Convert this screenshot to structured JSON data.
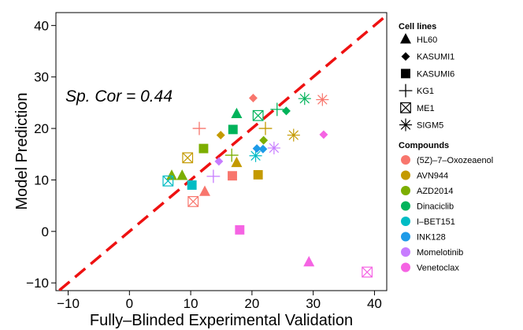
{
  "chart_data": {
    "type": "scatter",
    "xlabel": "Fully–Blinded Experimental Validation",
    "ylabel": "Model Prediction",
    "xlim": [
      -12,
      42
    ],
    "ylim": [
      -11.5,
      42.5
    ],
    "xticks": [
      -10,
      0,
      10,
      20,
      30,
      40
    ],
    "yticks": [
      -10,
      0,
      10,
      20,
      30,
      40
    ],
    "annotation": "Sp. Cor = 0.44",
    "reference_line": {
      "style": "dashed",
      "color": "#ee1111",
      "slope": 1,
      "intercept": 0
    },
    "legend_cell_lines": {
      "title": "Cell lines",
      "items": [
        {
          "label": "HL60",
          "shape": "triangle"
        },
        {
          "label": "KASUMI1",
          "shape": "diamond"
        },
        {
          "label": "KASUMI6",
          "shape": "square"
        },
        {
          "label": "KG1",
          "shape": "plus"
        },
        {
          "label": "ME1",
          "shape": "boxx"
        },
        {
          "label": "SIGM5",
          "shape": "star"
        }
      ]
    },
    "legend_compounds": {
      "title": "Compounds",
      "items": [
        {
          "label": "(5Z)–7–Oxozeaenol",
          "color": "#f8766d"
        },
        {
          "label": "AVN944",
          "color": "#c49a00"
        },
        {
          "label": "AZD2014",
          "color": "#7cae00"
        },
        {
          "label": "Dinaciclib",
          "color": "#00b35a"
        },
        {
          "label": "I–BET151",
          "color": "#00bcc4"
        },
        {
          "label": "INK128",
          "color": "#1e9be8"
        },
        {
          "label": "Momelotinib",
          "color": "#c77cff"
        },
        {
          "label": "Venetoclax",
          "color": "#f564e3"
        }
      ]
    },
    "points": [
      {
        "x": 20.2,
        "y": 25.9,
        "cell_line": "KASUMI1",
        "compound": "(5Z)–7–Oxozeaenol"
      },
      {
        "x": 31.5,
        "y": 25.6,
        "cell_line": "SIGM5",
        "compound": "(5Z)–7–Oxozeaenol"
      },
      {
        "x": 11.4,
        "y": 20.0,
        "cell_line": "KG1",
        "compound": "(5Z)–7–Oxozeaenol"
      },
      {
        "x": 16.8,
        "y": 10.8,
        "cell_line": "KASUMI6",
        "compound": "(5Z)–7–Oxozeaenol"
      },
      {
        "x": 12.3,
        "y": 7.7,
        "cell_line": "HL60",
        "compound": "(5Z)–7–Oxozeaenol"
      },
      {
        "x": 10.4,
        "y": 5.8,
        "cell_line": "ME1",
        "compound": "(5Z)–7–Oxozeaenol"
      },
      {
        "x": 14.9,
        "y": 18.7,
        "cell_line": "KASUMI1",
        "compound": "AVN944"
      },
      {
        "x": 22.2,
        "y": 20.0,
        "cell_line": "KG1",
        "compound": "AVN944"
      },
      {
        "x": 26.8,
        "y": 18.7,
        "cell_line": "SIGM5",
        "compound": "AVN944"
      },
      {
        "x": 9.5,
        "y": 14.3,
        "cell_line": "ME1",
        "compound": "AVN944"
      },
      {
        "x": 17.5,
        "y": 13.3,
        "cell_line": "HL60",
        "compound": "AVN944"
      },
      {
        "x": 21.0,
        "y": 11.0,
        "cell_line": "KASUMI6",
        "compound": "AVN944"
      },
      {
        "x": 12.1,
        "y": 16.1,
        "cell_line": "KASUMI6",
        "compound": "AZD2014"
      },
      {
        "x": 21.9,
        "y": 17.7,
        "cell_line": "KASUMI1",
        "compound": "AZD2014"
      },
      {
        "x": 16.7,
        "y": 14.8,
        "cell_line": "KG1",
        "compound": "AZD2014"
      },
      {
        "x": 6.9,
        "y": 10.8,
        "cell_line": "HL60",
        "compound": "AZD2014"
      },
      {
        "x": 8.6,
        "y": 10.8,
        "cell_line": "HL60",
        "compound": "AZD2014"
      },
      {
        "x": 17.5,
        "y": 22.8,
        "cell_line": "HL60",
        "compound": "Dinaciclib"
      },
      {
        "x": 16.9,
        "y": 19.8,
        "cell_line": "KASUMI6",
        "compound": "Dinaciclib"
      },
      {
        "x": 21.0,
        "y": 22.5,
        "cell_line": "ME1",
        "compound": "Dinaciclib"
      },
      {
        "x": 24.1,
        "y": 23.7,
        "cell_line": "KG1",
        "compound": "Dinaciclib"
      },
      {
        "x": 25.6,
        "y": 23.4,
        "cell_line": "KASUMI1",
        "compound": "Dinaciclib"
      },
      {
        "x": 28.6,
        "y": 25.8,
        "cell_line": "SIGM5",
        "compound": "Dinaciclib"
      },
      {
        "x": 6.3,
        "y": 9.8,
        "cell_line": "ME1",
        "compound": "I–BET151"
      },
      {
        "x": 10.2,
        "y": 9.0,
        "cell_line": "KASUMI6",
        "compound": "I–BET151"
      },
      {
        "x": 20.6,
        "y": 14.7,
        "cell_line": "SIGM5",
        "compound": "I–BET151"
      },
      {
        "x": 20.8,
        "y": 16.1,
        "cell_line": "KASUMI1",
        "compound": "INK128"
      },
      {
        "x": 21.8,
        "y": 16.0,
        "cell_line": "KASUMI1",
        "compound": "INK128"
      },
      {
        "x": 14.6,
        "y": 13.6,
        "cell_line": "KASUMI1",
        "compound": "Momelotinib"
      },
      {
        "x": 13.7,
        "y": 10.7,
        "cell_line": "KG1",
        "compound": "Momelotinib"
      },
      {
        "x": 23.6,
        "y": 16.2,
        "cell_line": "SIGM5",
        "compound": "Momelotinib"
      },
      {
        "x": 31.7,
        "y": 18.8,
        "cell_line": "KASUMI1",
        "compound": "Venetoclax"
      },
      {
        "x": 18.0,
        "y": 0.3,
        "cell_line": "KASUMI6",
        "compound": "Venetoclax"
      },
      {
        "x": 29.3,
        "y": -6.0,
        "cell_line": "HL60",
        "compound": "Venetoclax"
      },
      {
        "x": 38.8,
        "y": -7.9,
        "cell_line": "ME1",
        "compound": "Venetoclax"
      }
    ]
  }
}
